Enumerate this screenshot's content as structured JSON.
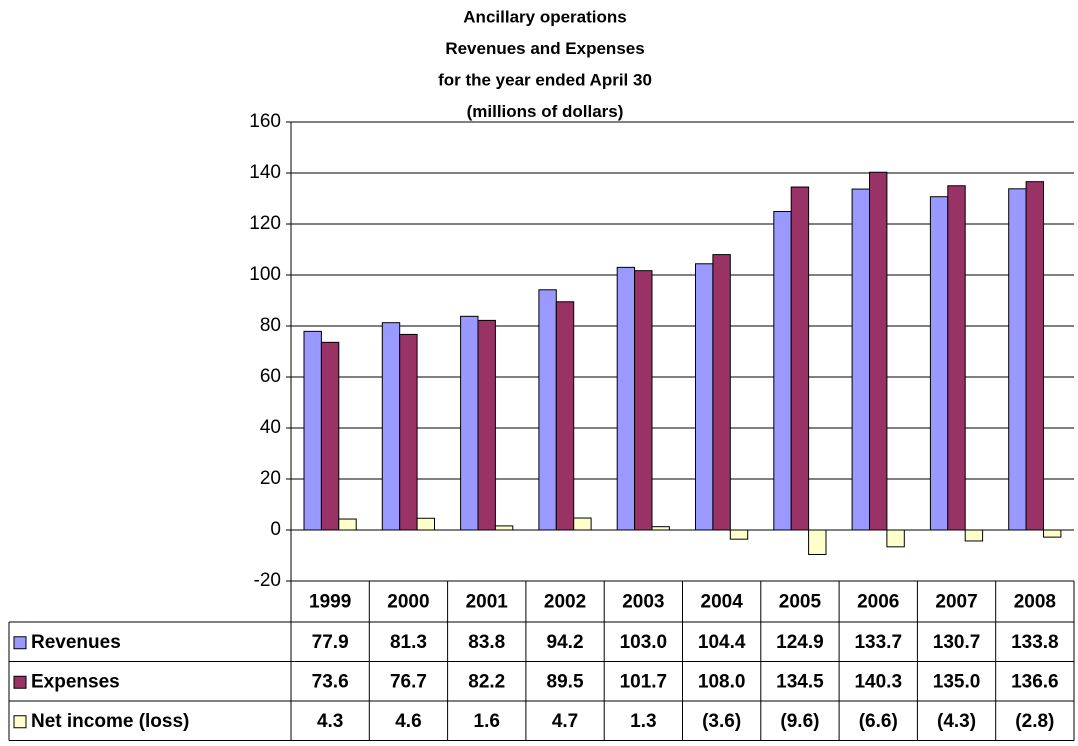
{
  "chart_data": {
    "type": "bar",
    "title": [
      "Ancillary operations",
      "Revenues and Expenses",
      "for the year ended April 30",
      "(millions of dollars)"
    ],
    "categories": [
      "1999",
      "2000",
      "2001",
      "2002",
      "2003",
      "2004",
      "2005",
      "2006",
      "2007",
      "2008"
    ],
    "series": [
      {
        "name": "Revenues",
        "color": "#9999ff",
        "values": [
          77.9,
          81.3,
          83.8,
          94.2,
          103.0,
          104.4,
          124.9,
          133.7,
          130.7,
          133.8
        ],
        "value_labels": [
          "77.9",
          "81.3",
          "83.8",
          "94.2",
          "103.0",
          "104.4",
          "124.9",
          "133.7",
          "130.7",
          "133.8"
        ]
      },
      {
        "name": "Expenses",
        "color": "#993366",
        "values": [
          73.6,
          76.7,
          82.2,
          89.5,
          101.7,
          108.0,
          134.5,
          140.3,
          135.0,
          136.6
        ],
        "value_labels": [
          "73.6",
          "76.7",
          "82.2",
          "89.5",
          "101.7",
          "108.0",
          "134.5",
          "140.3",
          "135.0",
          "136.6"
        ]
      },
      {
        "name": "Net income (loss)",
        "color": "#ffffcc",
        "values": [
          4.3,
          4.6,
          1.6,
          4.7,
          1.3,
          -3.6,
          -9.6,
          -6.6,
          -4.3,
          -2.8
        ],
        "value_labels": [
          "4.3",
          "4.6",
          "1.6",
          "4.7",
          "1.3",
          "(3.6)",
          "(9.6)",
          "(6.6)",
          "(4.3)",
          "(2.8)"
        ]
      }
    ],
    "ylim": [
      -20,
      160
    ],
    "yticks": [
      -20,
      0,
      20,
      40,
      60,
      80,
      100,
      120,
      140,
      160
    ],
    "grid": true
  }
}
